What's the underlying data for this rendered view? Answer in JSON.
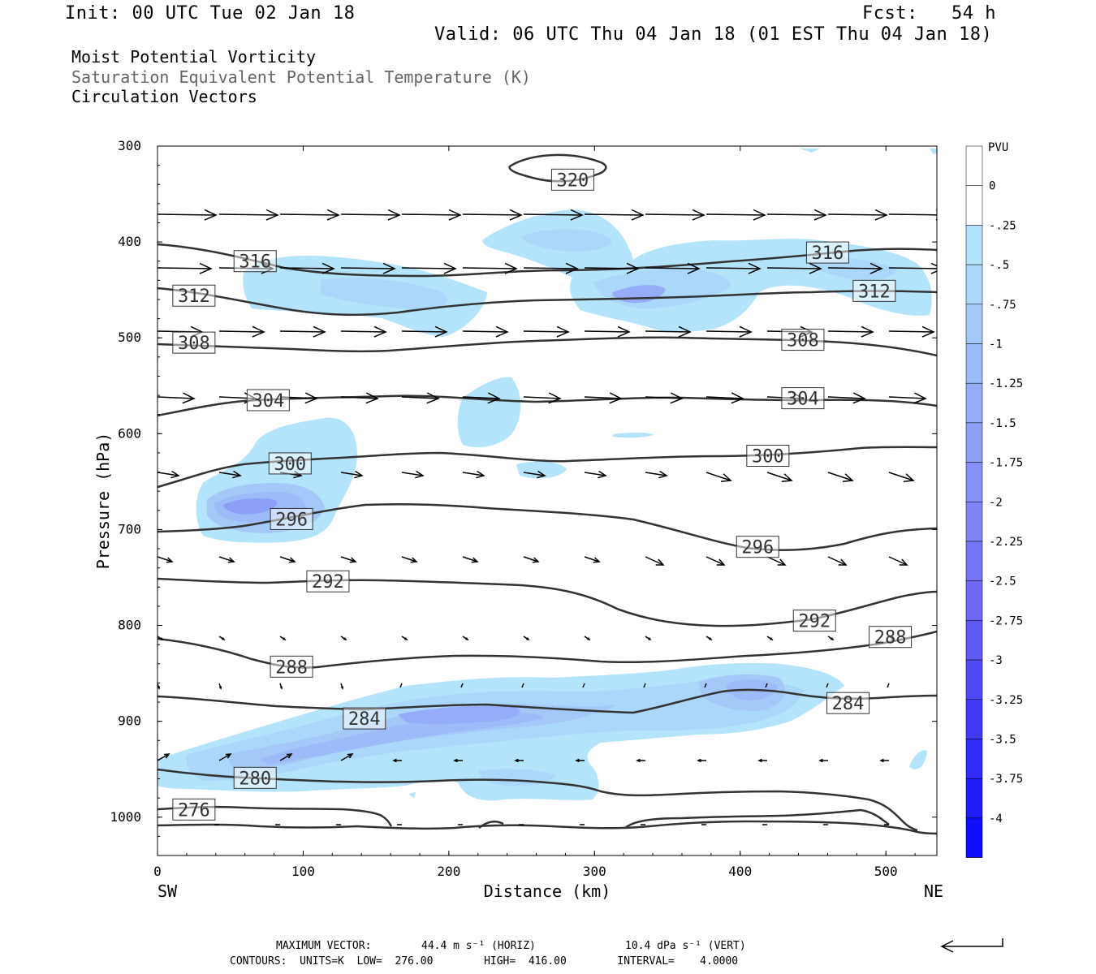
{
  "header": {
    "init": "Init: 00 UTC Tue 02 Jan 18",
    "fcst": "Fcst:   54 h",
    "valid": "Valid: 06 UTC Thu 04 Jan 18 (01 EST Thu 04 Jan 18)",
    "line1": "Moist Potential Vorticity",
    "line2": "Saturation Equivalent Potential Temperature (K)",
    "line3": "Circulation Vectors"
  },
  "footer": {
    "max_vector_label": "MAXIMUM VECTOR:",
    "horiz": "44.4 m s⁻¹ (HORIZ)",
    "vert": "10.4 dPa s⁻¹ (VERT)",
    "contours": "CONTOURS:  UNITS=K  LOW=  276.00        HIGH=  416.00        INTERVAL=    4.0000"
  },
  "chart_data": {
    "type": "cross-section",
    "ylabel": "Pressure (hPa)",
    "xlabel": "Distance (km)",
    "x_left_label": "SW",
    "x_right_label": "NE",
    "xlim": [
      0,
      535
    ],
    "ylim": [
      300,
      1040
    ],
    "y_inverted": true,
    "xticks": [
      0,
      100,
      200,
      300,
      400,
      500
    ],
    "yticks": [
      300,
      400,
      500,
      600,
      700,
      800,
      900,
      1000
    ],
    "colorbar": {
      "unit": "PVU",
      "levels": [
        "0",
        "-.25",
        "-.5",
        "-.75",
        "-1",
        "-1.25",
        "-1.5",
        "-1.75",
        "-2",
        "-2.25",
        "-2.5",
        "-2.75",
        "-3",
        "-3.25",
        "-3.5",
        "-3.75",
        "-4"
      ],
      "colors": [
        "#ffffff",
        "#ffffff",
        "#b3e4fb",
        "#abd7fa",
        "#a4c9f9",
        "#9cbbf8",
        "#95adf8",
        "#8d9ff7",
        "#8691f7",
        "#7e83f6",
        "#7675f6",
        "#6f67f5",
        "#5f58f5",
        "#5049f5",
        "#403af6",
        "#302bf7",
        "#1f1cf8",
        "#0f0ef9"
      ]
    },
    "theta_e_labels": [
      {
        "text": "320",
        "x": 285,
        "p": 335
      },
      {
        "text": "316",
        "x": 67,
        "p": 420
      },
      {
        "text": "316",
        "x": 460,
        "p": 411
      },
      {
        "text": "312",
        "x": 25,
        "p": 456
      },
      {
        "text": "312",
        "x": 492,
        "p": 451
      },
      {
        "text": "308",
        "x": 25,
        "p": 505
      },
      {
        "text": "308",
        "x": 443,
        "p": 502
      },
      {
        "text": "304",
        "x": 76,
        "p": 565
      },
      {
        "text": "304",
        "x": 443,
        "p": 563
      },
      {
        "text": "300",
        "x": 91,
        "p": 631
      },
      {
        "text": "300",
        "x": 419,
        "p": 623
      },
      {
        "text": "296",
        "x": 92,
        "p": 689
      },
      {
        "text": "296",
        "x": 412,
        "p": 718
      },
      {
        "text": "292",
        "x": 117,
        "p": 754
      },
      {
        "text": "292",
        "x": 451,
        "p": 795
      },
      {
        "text": "288",
        "x": 92,
        "p": 843
      },
      {
        "text": "288",
        "x": 503,
        "p": 812
      },
      {
        "text": "284",
        "x": 142,
        "p": 897
      },
      {
        "text": "284",
        "x": 474,
        "p": 881
      },
      {
        "text": "280",
        "x": 67,
        "p": 959
      },
      {
        "text": "276",
        "x": 25,
        "p": 992
      }
    ]
  }
}
